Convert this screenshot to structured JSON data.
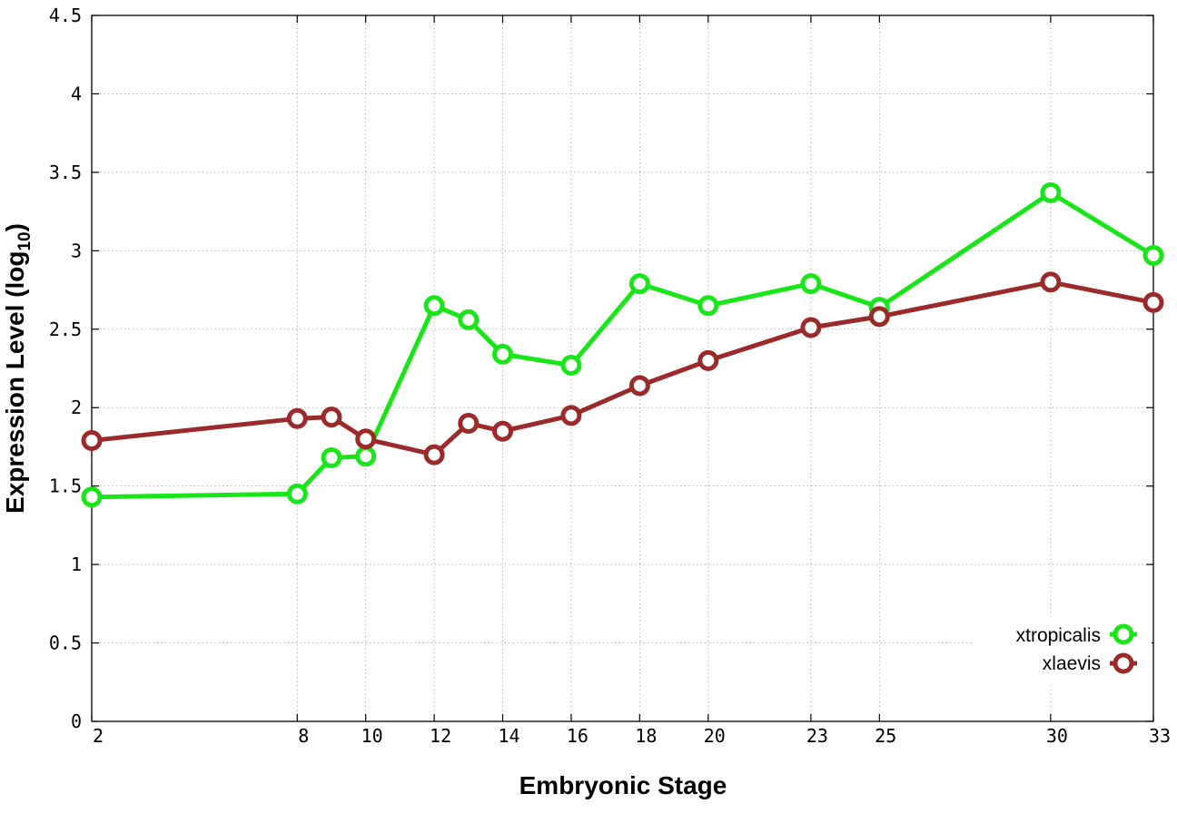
{
  "chart_data": {
    "type": "line",
    "title": "",
    "xlabel": "Embryonic Stage",
    "ylabel_main": "Expression Level (log",
    "ylabel_sub": "10",
    "ylabel_close": ")",
    "x": [
      2,
      8,
      9,
      10,
      12,
      13,
      14,
      16,
      18,
      20,
      23,
      25,
      30,
      33
    ],
    "x_ticks": [
      2,
      8,
      10,
      12,
      14,
      16,
      18,
      20,
      23,
      25,
      30,
      33
    ],
    "x_tick_labels": [
      "2",
      "8",
      "10",
      "12",
      "14",
      "16",
      "18",
      "20",
      "23",
      "25",
      "30",
      "33"
    ],
    "xlim": [
      2,
      33
    ],
    "ylim": [
      0,
      4.5
    ],
    "y_ticks": [
      0,
      0.5,
      1,
      1.5,
      2,
      2.5,
      3,
      3.5,
      4,
      4.5
    ],
    "y_tick_labels": [
      "0",
      "0.5",
      "1",
      "1.5",
      "2",
      "2.5",
      "3",
      "3.5",
      "4",
      "4.5"
    ],
    "grid": true,
    "legend_position": "bottom-right",
    "series": [
      {
        "name": "xtropicalis",
        "color": "#19e619",
        "values": [
          1.43,
          1.45,
          1.68,
          1.69,
          2.65,
          2.56,
          2.34,
          2.27,
          2.79,
          2.65,
          2.79,
          2.64,
          3.37,
          2.97
        ]
      },
      {
        "name": "xlaevis",
        "color": "#9b2a2a",
        "values": [
          1.79,
          1.93,
          1.94,
          1.8,
          1.7,
          1.9,
          1.85,
          1.95,
          2.14,
          2.3,
          2.51,
          2.58,
          2.8,
          2.67
        ]
      }
    ]
  }
}
